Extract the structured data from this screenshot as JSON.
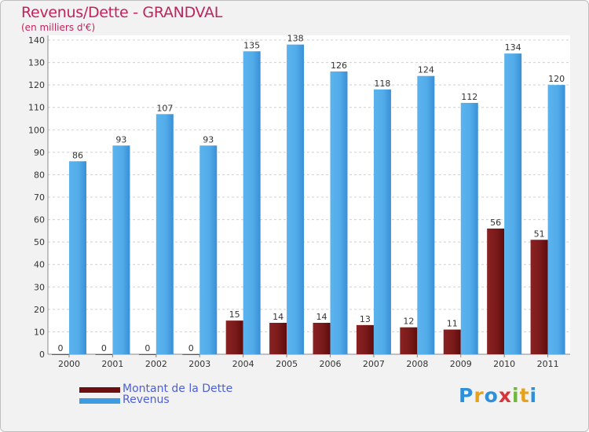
{
  "title": "Revenus/Dette - GRANDVAL",
  "subtitle": "(en milliers d'€)",
  "colors": {
    "debt": "#7a1414",
    "revenue": "#4da6e8",
    "title": "#c0245c"
  },
  "legend": {
    "debt_label": "Montant de la Dette",
    "revenue_label": "Revenus"
  },
  "logo": {
    "text": "Proxiti",
    "letters": [
      "P",
      "r",
      "o",
      "x",
      "i",
      "t",
      "i"
    ]
  },
  "chart_data": {
    "type": "bar",
    "categories": [
      "2000",
      "2001",
      "2002",
      "2003",
      "2004",
      "2005",
      "2006",
      "2007",
      "2008",
      "2009",
      "2010",
      "2011"
    ],
    "series": [
      {
        "name": "Montant de la Dette",
        "values": [
          0,
          0,
          0,
          0,
          15,
          14,
          14,
          13,
          12,
          11,
          56,
          51
        ]
      },
      {
        "name": "Revenus",
        "values": [
          86,
          93,
          107,
          93,
          135,
          138,
          126,
          118,
          124,
          112,
          134,
          120
        ]
      }
    ],
    "ylim": [
      0,
      140
    ],
    "yticks": [
      0,
      10,
      20,
      30,
      40,
      50,
      60,
      70,
      80,
      90,
      100,
      110,
      120,
      130,
      140
    ],
    "grid": true,
    "legend_position": "bottom-left"
  }
}
